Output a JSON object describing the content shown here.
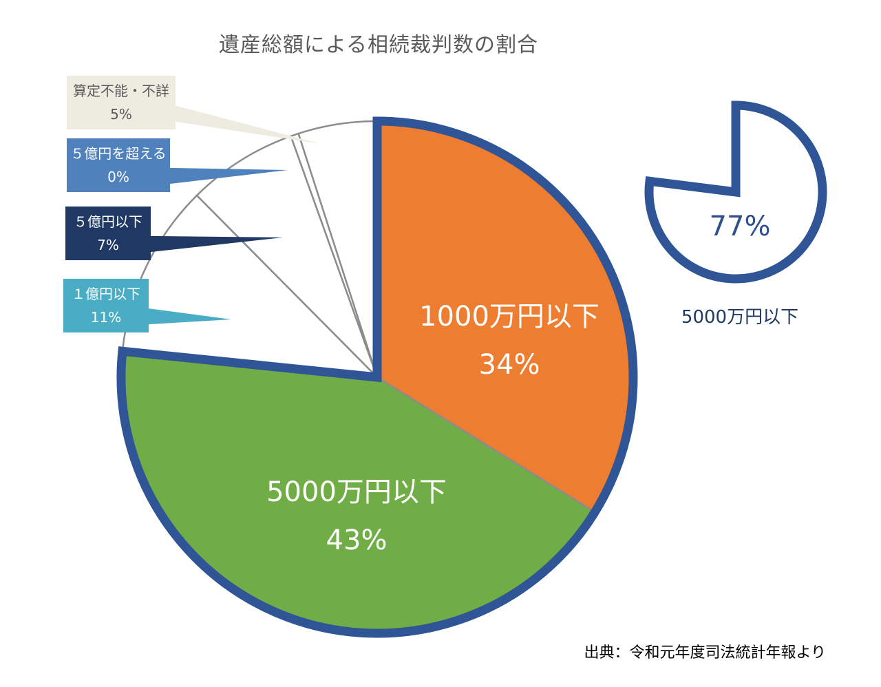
{
  "chart_data": {
    "type": "pie",
    "title": "遺産総額による相続裁判数の割合",
    "slices": [
      {
        "label": "1000万円以下",
        "value": 34,
        "value_label": "34%",
        "color": "#ed7d31"
      },
      {
        "label": "5000万円以下",
        "value": 43,
        "value_label": "43%",
        "color": "#70ad47"
      },
      {
        "label": "１億円以下",
        "value": 11,
        "value_label": "11%",
        "color": "#ffffff"
      },
      {
        "label": "５億円以下",
        "value": 7,
        "value_label": "7%",
        "color": "#ffffff"
      },
      {
        "label": "５億円を超える",
        "value": 0.5,
        "value_label": "0%",
        "color": "#ffffff"
      },
      {
        "label": "算定不能・不詳",
        "value": 5,
        "value_label": "5%",
        "color": "#ffffff"
      }
    ],
    "callouts": [
      {
        "label": "算定不能・不詳",
        "value_label": "5%",
        "bg": "#eeece1",
        "text": "#595959"
      },
      {
        "label": "５億円を超える",
        "value_label": "0%",
        "bg": "#4f81bd",
        "text": "#ffffff"
      },
      {
        "label": "５億円以下",
        "value_label": "7%",
        "bg": "#1f3864",
        "text": "#ffffff"
      },
      {
        "label": "１億円以下",
        "value_label": "11%",
        "bg": "#4bacc6",
        "text": "#ffffff"
      }
    ],
    "summary": {
      "value_label": "77%",
      "label": "5000万円以下",
      "value": 77
    },
    "outline_color": "#2f5597"
  },
  "source": "出典：令和元年度司法統計年報より"
}
